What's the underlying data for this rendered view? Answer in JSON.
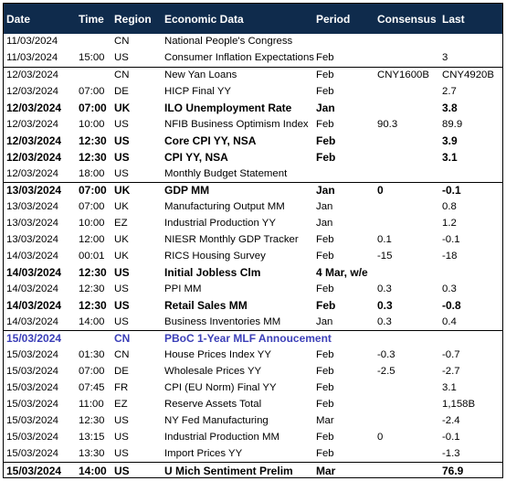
{
  "headers": [
    "Date",
    "Time",
    "Region",
    "Economic Data",
    "Period",
    "Consensus",
    "Last"
  ],
  "rows": [
    {
      "date": "11/03/2024",
      "time": "",
      "region": "CN",
      "event": "National People's Congress",
      "period": "",
      "consensus": "",
      "last": "",
      "style": "normal",
      "sep": false
    },
    {
      "date": "11/03/2024",
      "time": "15:00",
      "region": "US",
      "event": "Consumer Inflation Expectations",
      "period": "Feb",
      "consensus": "",
      "last": "3",
      "style": "normal",
      "sep": false
    },
    {
      "date": "12/03/2024",
      "time": "",
      "region": "CN",
      "event": "New Yan Loans",
      "period": "Feb",
      "consensus": "CNY1600B",
      "last": "CNY4920B",
      "style": "normal",
      "sep": true
    },
    {
      "date": "12/03/2024",
      "time": "07:00",
      "region": "DE",
      "event": "HICP Final YY",
      "period": "Feb",
      "consensus": "",
      "last": "2.7",
      "style": "normal",
      "sep": false
    },
    {
      "date": "12/03/2024",
      "time": "07:00",
      "region": "UK",
      "event": "ILO Unemployment Rate",
      "period": "Jan",
      "consensus": "",
      "last": "3.8",
      "style": "bold",
      "sep": false
    },
    {
      "date": "12/03/2024",
      "time": "10:00",
      "region": "US",
      "event": "NFIB Business Optimism Index",
      "period": "Feb",
      "consensus": "90.3",
      "last": "89.9",
      "style": "normal",
      "sep": false
    },
    {
      "date": "12/03/2024",
      "time": "12:30",
      "region": "US",
      "event": "Core CPI YY, NSA",
      "period": "Feb",
      "consensus": "",
      "last": "3.9",
      "style": "bold",
      "sep": false
    },
    {
      "date": "12/03/2024",
      "time": "12:30",
      "region": "US",
      "event": "CPI YY, NSA",
      "period": "Feb",
      "consensus": "",
      "last": "3.1",
      "style": "bold",
      "sep": false
    },
    {
      "date": "12/03/2024",
      "time": "18:00",
      "region": "US",
      "event": "Monthly Budget Statement",
      "period": "",
      "consensus": "",
      "last": "",
      "style": "normal",
      "sep": false
    },
    {
      "date": "13/03/2024",
      "time": "07:00",
      "region": "UK",
      "event": "GDP MM",
      "period": "Jan",
      "consensus": "0",
      "last": "-0.1",
      "style": "bold",
      "sep": true
    },
    {
      "date": "13/03/2024",
      "time": "07:00",
      "region": "UK",
      "event": "Manufacturing Output MM",
      "period": "Jan",
      "consensus": "",
      "last": "0.8",
      "style": "normal",
      "sep": false
    },
    {
      "date": "13/03/2024",
      "time": "10:00",
      "region": "EZ",
      "event": "Industrial Production YY",
      "period": "Jan",
      "consensus": "",
      "last": "1.2",
      "style": "normal",
      "sep": false
    },
    {
      "date": "13/03/2024",
      "time": "12:00",
      "region": "UK",
      "event": "NIESR Monthly GDP Tracker",
      "period": "Feb",
      "consensus": "0.1",
      "last": "-0.1",
      "style": "normal",
      "sep": false
    },
    {
      "date": "14/03/2024",
      "time": "00:01",
      "region": "UK",
      "event": "RICS Housing Survey",
      "period": "Feb",
      "consensus": "-15",
      "last": "-18",
      "style": "normal",
      "sep": false
    },
    {
      "date": "14/03/2024",
      "time": "12:30",
      "region": "US",
      "event": "Initial Jobless Clm",
      "period": "4 Mar, w/e",
      "consensus": "",
      "last": "",
      "style": "bold",
      "sep": false
    },
    {
      "date": "14/03/2024",
      "time": "12:30",
      "region": "US",
      "event": "PPI MM",
      "period": "Feb",
      "consensus": "0.3",
      "last": "0.3",
      "style": "normal",
      "sep": false
    },
    {
      "date": "14/03/2024",
      "time": "12:30",
      "region": "US",
      "event": "Retail Sales MM",
      "period": "Feb",
      "consensus": "0.3",
      "last": "-0.8",
      "style": "bold",
      "sep": false
    },
    {
      "date": "14/03/2024",
      "time": "14:00",
      "region": "US",
      "event": "Business Inventories MM",
      "period": "Jan",
      "consensus": "0.3",
      "last": "0.4",
      "style": "normal",
      "sep": false
    },
    {
      "date": "15/03/2024",
      "time": "",
      "region": "CN",
      "event": "PBoC 1-Year MLF Annoucement",
      "period": "",
      "consensus": "",
      "last": "",
      "style": "blue",
      "sep": true
    },
    {
      "date": "15/03/2024",
      "time": "01:30",
      "region": "CN",
      "event": "House Prices Index YY",
      "period": "Feb",
      "consensus": "-0.3",
      "last": "-0.7",
      "style": "normal",
      "sep": false
    },
    {
      "date": "15/03/2024",
      "time": "07:00",
      "region": "DE",
      "event": "Wholesale Prices YY",
      "period": "Feb",
      "consensus": "-2.5",
      "last": "-2.7",
      "style": "normal",
      "sep": false
    },
    {
      "date": "15/03/2024",
      "time": "07:45",
      "region": "FR",
      "event": "CPI (EU Norm) Final YY",
      "period": "Feb",
      "consensus": "",
      "last": "3.1",
      "style": "normal",
      "sep": false
    },
    {
      "date": "15/03/2024",
      "time": "11:00",
      "region": "EZ",
      "event": "Reserve Assets Total",
      "period": "Feb",
      "consensus": "",
      "last": "1,158B",
      "style": "normal",
      "sep": false
    },
    {
      "date": "15/03/2024",
      "time": "12:30",
      "region": "US",
      "event": "NY Fed Manufacturing",
      "period": "Mar",
      "consensus": "",
      "last": "-2.4",
      "style": "normal",
      "sep": false
    },
    {
      "date": "15/03/2024",
      "time": "13:15",
      "region": "US",
      "event": "Industrial Production MM",
      "period": "Feb",
      "consensus": "0",
      "last": "-0.1",
      "style": "normal",
      "sep": false
    },
    {
      "date": "15/03/2024",
      "time": "13:30",
      "region": "US",
      "event": "Import Prices YY",
      "period": "Feb",
      "consensus": "",
      "last": "-1.3",
      "style": "normal",
      "sep": false
    },
    {
      "date": "15/03/2024",
      "time": "14:00",
      "region": "US",
      "event": "U Mich Sentiment Prelim",
      "period": "Mar",
      "consensus": "",
      "last": "76.9",
      "style": "bold",
      "sep": true
    }
  ]
}
